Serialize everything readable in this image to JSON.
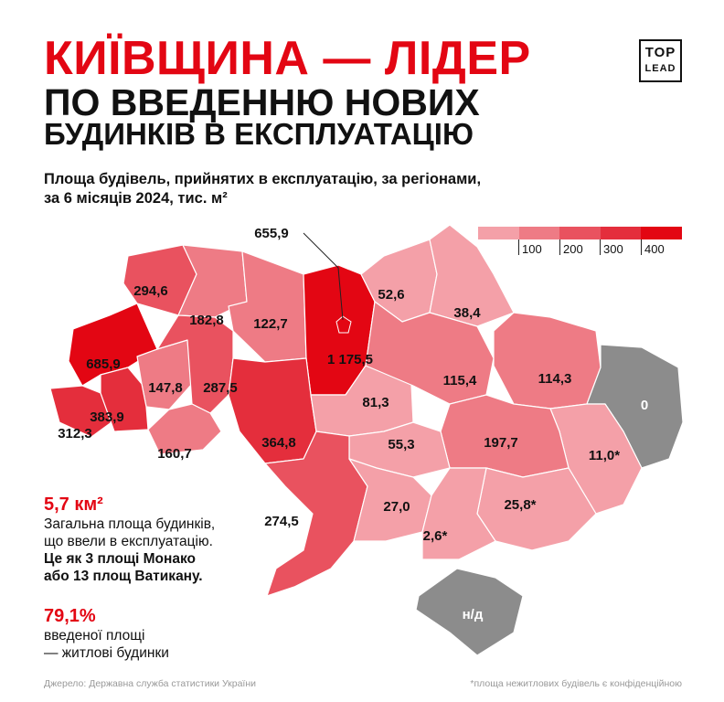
{
  "header": {
    "title_line1": "КИЇВЩИНА — ЛІДЕР",
    "title_line2": "ПО ВВЕДЕННЮ НОВИХ",
    "title_line3": "БУДИНКІВ В ЕКСПЛУАТАЦІЮ",
    "logo_top": "TOP",
    "logo_bottom": "LEAD"
  },
  "subtitle_line1": "Площа будівель, прийнятих в експлуатацію, за регіонами,",
  "subtitle_line2": "за 6 місяців 2024, тис. м²",
  "legend": {
    "ticks": [
      "100",
      "200",
      "300",
      "400"
    ],
    "colors": [
      "#f4a0a8",
      "#ee7b85",
      "#e9525f",
      "#e42e3c",
      "#e30613"
    ]
  },
  "colors": {
    "accent": "#e30613",
    "no_data": "#8c8c8c"
  },
  "chart_data": {
    "type": "choropleth",
    "unit": "тис. м²",
    "bins": [
      0,
      100,
      200,
      300,
      400
    ],
    "regions": [
      {
        "id": "volyn",
        "label": "294,6",
        "value": 294.6
      },
      {
        "id": "rivne",
        "label": "182,8",
        "value": 182.8
      },
      {
        "id": "zhytomyr",
        "label": "122,7",
        "value": 122.7
      },
      {
        "id": "kyiv-oblast",
        "label": "1 175,5",
        "value": 1175.5
      },
      {
        "id": "kyiv-city",
        "label": "655,9",
        "value": 655.9
      },
      {
        "id": "chernihiv",
        "label": "52,6",
        "value": 52.6
      },
      {
        "id": "sumy",
        "label": "38,4",
        "value": 38.4
      },
      {
        "id": "lviv",
        "label": "685,9",
        "value": 685.9
      },
      {
        "id": "ternopil",
        "label": "147,8",
        "value": 147.8
      },
      {
        "id": "khmelnytskyi",
        "label": "287,5",
        "value": 287.5
      },
      {
        "id": "vinnytsia",
        "label": "364,8",
        "value": 364.8
      },
      {
        "id": "zakarpattia",
        "label": "312,3",
        "value": 312.3
      },
      {
        "id": "ivano-frankivsk",
        "label": "383,9",
        "value": 383.9
      },
      {
        "id": "chernivtsi",
        "label": "160,7",
        "value": 160.7
      },
      {
        "id": "cherkasy",
        "label": "81,3",
        "value": 81.3
      },
      {
        "id": "poltava",
        "label": "115,4",
        "value": 115.4
      },
      {
        "id": "kharkiv",
        "label": "114,3",
        "value": 114.3
      },
      {
        "id": "luhansk",
        "label": "0",
        "value": null
      },
      {
        "id": "donetsk",
        "label": "11,0*",
        "value": 11.0
      },
      {
        "id": "dnipro",
        "label": "197,7",
        "value": 197.7
      },
      {
        "id": "kirovohrad",
        "label": "55,3",
        "value": 55.3
      },
      {
        "id": "odesa",
        "label": "274,5",
        "value": 274.5
      },
      {
        "id": "mykolaiv",
        "label": "27,0",
        "value": 27.0
      },
      {
        "id": "zaporizhzhia",
        "label": "25,8*",
        "value": 25.8
      },
      {
        "id": "kherson",
        "label": "2,6*",
        "value": 2.6
      },
      {
        "id": "crimea",
        "label": "н/д",
        "value": null
      }
    ]
  },
  "stats": [
    {
      "value": "5,7 км²",
      "text1": "Загальна площа будинків,",
      "text2": "що ввели в експлуатацію.",
      "text3": "Це як 3 площі Монако",
      "text4": "або 13 площ Ватикану."
    },
    {
      "value": "79,1%",
      "text1": "введеної площі",
      "text2": "— житлові будинки"
    }
  ],
  "footer": {
    "source": "Джерело: Державна служба статистики України",
    "note": "*площа нежитлових будівель є конфіденційною"
  }
}
